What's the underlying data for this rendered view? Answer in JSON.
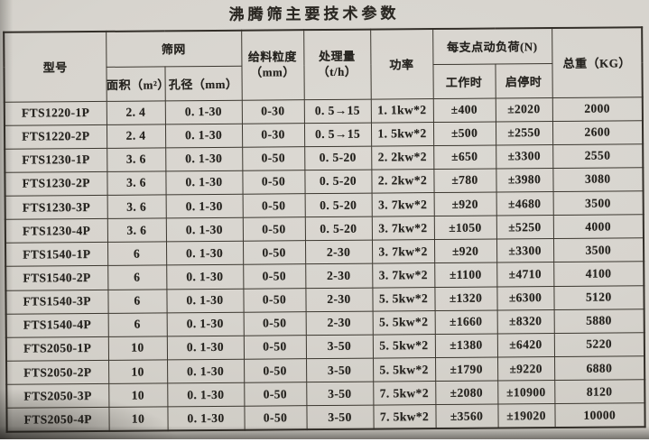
{
  "title": "沸腾筛主要技术参数",
  "colors": {
    "paper": "#d7d4ce",
    "border": "#3b372f",
    "ink": "#262420"
  },
  "table": {
    "headers": {
      "model": "型号",
      "screen_group": "筛网",
      "area": "面积（m²）",
      "aperture": "孔径（mm）",
      "feed_line1": "给料粒度",
      "feed_line2": "（mm）",
      "capacity_line1": "处理量",
      "capacity_line2": "（t/h）",
      "power": "功率",
      "load_group": "每支点动负荷(N)",
      "working": "工作时",
      "startstop": "启停时",
      "weight": "总重（KG）"
    },
    "rows": [
      [
        "FTS1220-1P",
        "2. 4",
        "0. 1-30",
        "0-30",
        "0. 5→15",
        "1. 1kw*2",
        "±400",
        "±2020",
        "2000"
      ],
      [
        "FTS1220-2P",
        "2. 4",
        "0. 1-30",
        "0-30",
        "0. 5→15",
        "1. 5kw*2",
        "±500",
        "±2550",
        "2600"
      ],
      [
        "FTS1230-1P",
        "3. 6",
        "0. 1-30",
        "0-50",
        "0. 5-20",
        "2. 2kw*2",
        "±650",
        "±3300",
        "2550"
      ],
      [
        "FTS1230-2P",
        "3. 6",
        "0. 1-30",
        "0-50",
        "0. 5-20",
        "2. 2kw*2",
        "±780",
        "±3980",
        "3080"
      ],
      [
        "FTS1230-3P",
        "3. 6",
        "0. 1-30",
        "0-50",
        "0. 5-20",
        "3. 7kw*2",
        "±920",
        "±4680",
        "3500"
      ],
      [
        "FTS1230-4P",
        "3. 6",
        "0. 1-30",
        "0-50",
        "0. 5-20",
        "3. 7kw*2",
        "±1050",
        "±5250",
        "4000"
      ],
      [
        "FTS1540-1P",
        "6",
        "0. 1-30",
        "0-50",
        "2-30",
        "3. 7kw*2",
        "±920",
        "±3300",
        "3500"
      ],
      [
        "FTS1540-2P",
        "6",
        "0. 1-30",
        "0-50",
        "2-30",
        "3. 7kw*2",
        "±1100",
        "±4710",
        "4100"
      ],
      [
        "FTS1540-3P",
        "6",
        "0. 1-30",
        "0-50",
        "2-30",
        "5. 5kw*2",
        "±1320",
        "±6300",
        "5120"
      ],
      [
        "FTS1540-4P",
        "6",
        "0. 1-30",
        "0-50",
        "2-30",
        "5. 5kw*2",
        "±1660",
        "±8320",
        "5880"
      ],
      [
        "FTS2050-1P",
        "10",
        "0. 1-30",
        "0-50",
        "3-50",
        "5. 5kw*2",
        "±1380",
        "±6420",
        "5220"
      ],
      [
        "FTS2050-2P",
        "10",
        "0. 1-30",
        "0-50",
        "3-50",
        "5. 5kw*2",
        "±1790",
        "±9220",
        "6880"
      ],
      [
        "FTS2050-3P",
        "10",
        "0. 1-30",
        "0-50",
        "3-50",
        "7. 5kw*2",
        "±2080",
        "±10900",
        "8120"
      ],
      [
        "FTS2050-4P",
        "10",
        "0. 1-30",
        "0-50",
        "3-50",
        "7. 5kw*2",
        "±3560",
        "±19020",
        "10000"
      ]
    ]
  }
}
